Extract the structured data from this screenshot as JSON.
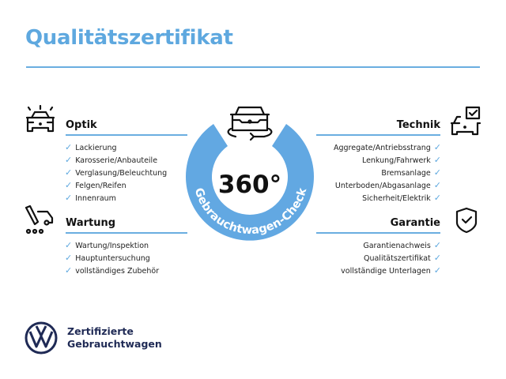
{
  "title": "Qualitätszertifikat",
  "center": {
    "degrees": "360°",
    "ring_text": "Gebrauchtwagen-Check",
    "icon": "rotating-car-icon"
  },
  "sections": {
    "optik": {
      "title": "Optik",
      "icon": "car-lights-icon",
      "items": [
        "Lackierung",
        "Karosserie/Anbauteile",
        "Verglasung/Beleuchtung",
        "Felgen/Reifen",
        "Innenraum"
      ]
    },
    "wartung": {
      "title": "Wartung",
      "icon": "service-van-icon",
      "items": [
        "Wartung/Inspektion",
        "Hauptuntersuchung",
        "vollständiges Zubehör"
      ]
    },
    "technik": {
      "title": "Technik",
      "icon": "car-checkbox-icon",
      "items": [
        "Aggregate/Antriebsstrang",
        "Lenkung/Fahrwerk",
        "Bremsanlage",
        "Unterboden/Abgasanlage",
        "Sicherheit/Elektrik"
      ]
    },
    "garantie": {
      "title": "Garantie",
      "icon": "shield-check-icon",
      "items": [
        "Garantienachweis",
        "Qualitätszertifikat",
        "vollständige Unterlagen"
      ]
    }
  },
  "check_glyph": "✓",
  "logo": {
    "line1": "Zertifizierte",
    "line2": "Gebrauchtwagen",
    "brand_mark": "VW"
  },
  "colors": {
    "accent": "#5ea8df",
    "ring": "#62a8e2",
    "logo": "#1f2a55",
    "text": "#111111"
  }
}
